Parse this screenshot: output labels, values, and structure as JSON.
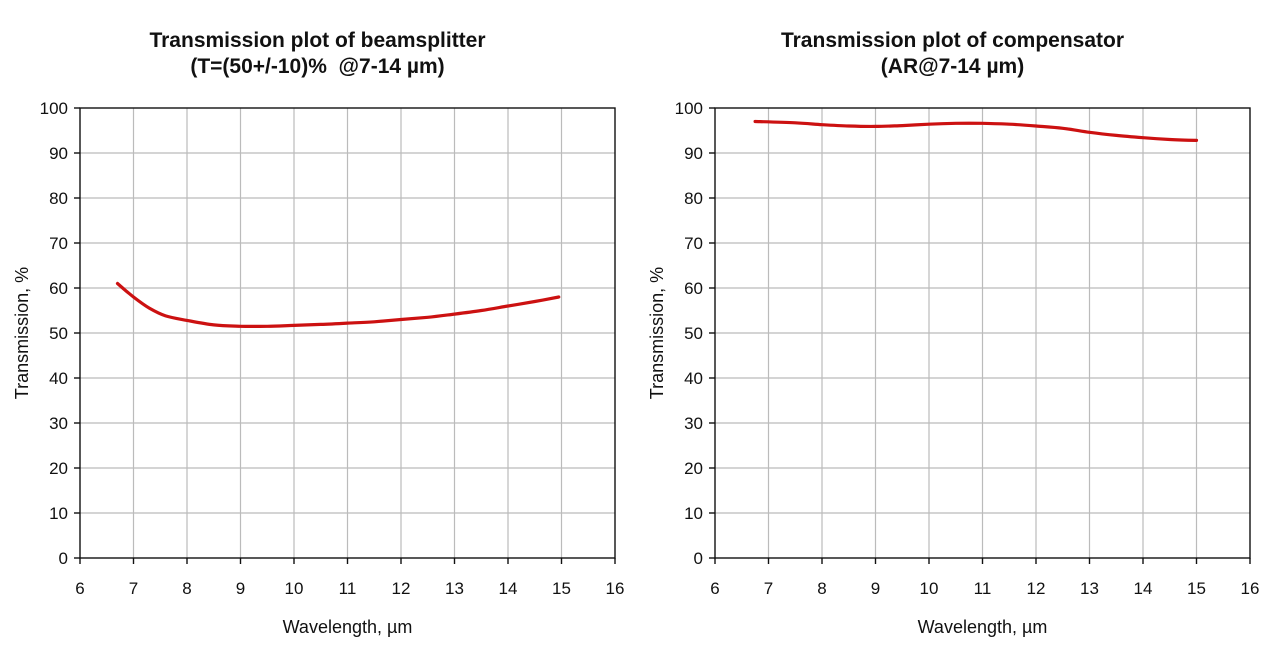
{
  "colors": {
    "series": "#cc1111",
    "grid": "#bbbbbb",
    "frame": "#111111"
  },
  "chart_data": [
    {
      "type": "line",
      "title": "Transmission plot of beamsplitter",
      "subtitle": "(T=(50+/-10)%  @7-14 µm)",
      "xlabel": "Wavelength, µm",
      "ylabel": "Transmission, %",
      "xlim": [
        6,
        16
      ],
      "ylim": [
        0,
        100
      ],
      "xticks": [
        6,
        7,
        8,
        9,
        10,
        11,
        12,
        13,
        14,
        15,
        16
      ],
      "yticks": [
        0,
        10,
        20,
        30,
        40,
        50,
        60,
        70,
        80,
        90,
        100
      ],
      "grid": true,
      "series": [
        {
          "x": [
            6.7,
            7.0,
            7.3,
            7.6,
            8.0,
            8.5,
            9.0,
            9.5,
            10.0,
            10.5,
            11.0,
            11.5,
            12.0,
            12.5,
            13.0,
            13.5,
            14.0,
            14.5,
            14.95
          ],
          "y": [
            61.0,
            58.0,
            55.5,
            53.8,
            52.8,
            51.8,
            51.5,
            51.5,
            51.7,
            51.9,
            52.2,
            52.5,
            53.0,
            53.5,
            54.2,
            55.0,
            56.0,
            57.0,
            58.0
          ]
        }
      ]
    },
    {
      "type": "line",
      "title": "Transmission plot of compensator",
      "subtitle": "(AR@7-14 µm)",
      "xlabel": "Wavelength, µm",
      "ylabel": "Transmission, %",
      "xlim": [
        6,
        16
      ],
      "ylim": [
        0,
        100
      ],
      "xticks": [
        6,
        7,
        8,
        9,
        10,
        11,
        12,
        13,
        14,
        15,
        16
      ],
      "yticks": [
        0,
        10,
        20,
        30,
        40,
        50,
        60,
        70,
        80,
        90,
        100
      ],
      "grid": true,
      "series": [
        {
          "x": [
            6.75,
            7.5,
            8.0,
            8.5,
            9.0,
            9.5,
            10.0,
            10.5,
            11.0,
            11.5,
            12.0,
            12.5,
            13.0,
            13.5,
            14.0,
            14.5,
            15.0
          ],
          "y": [
            97.0,
            96.7,
            96.3,
            96.0,
            95.9,
            96.1,
            96.4,
            96.6,
            96.6,
            96.4,
            96.0,
            95.5,
            94.6,
            93.9,
            93.4,
            93.0,
            92.8
          ]
        }
      ]
    }
  ]
}
